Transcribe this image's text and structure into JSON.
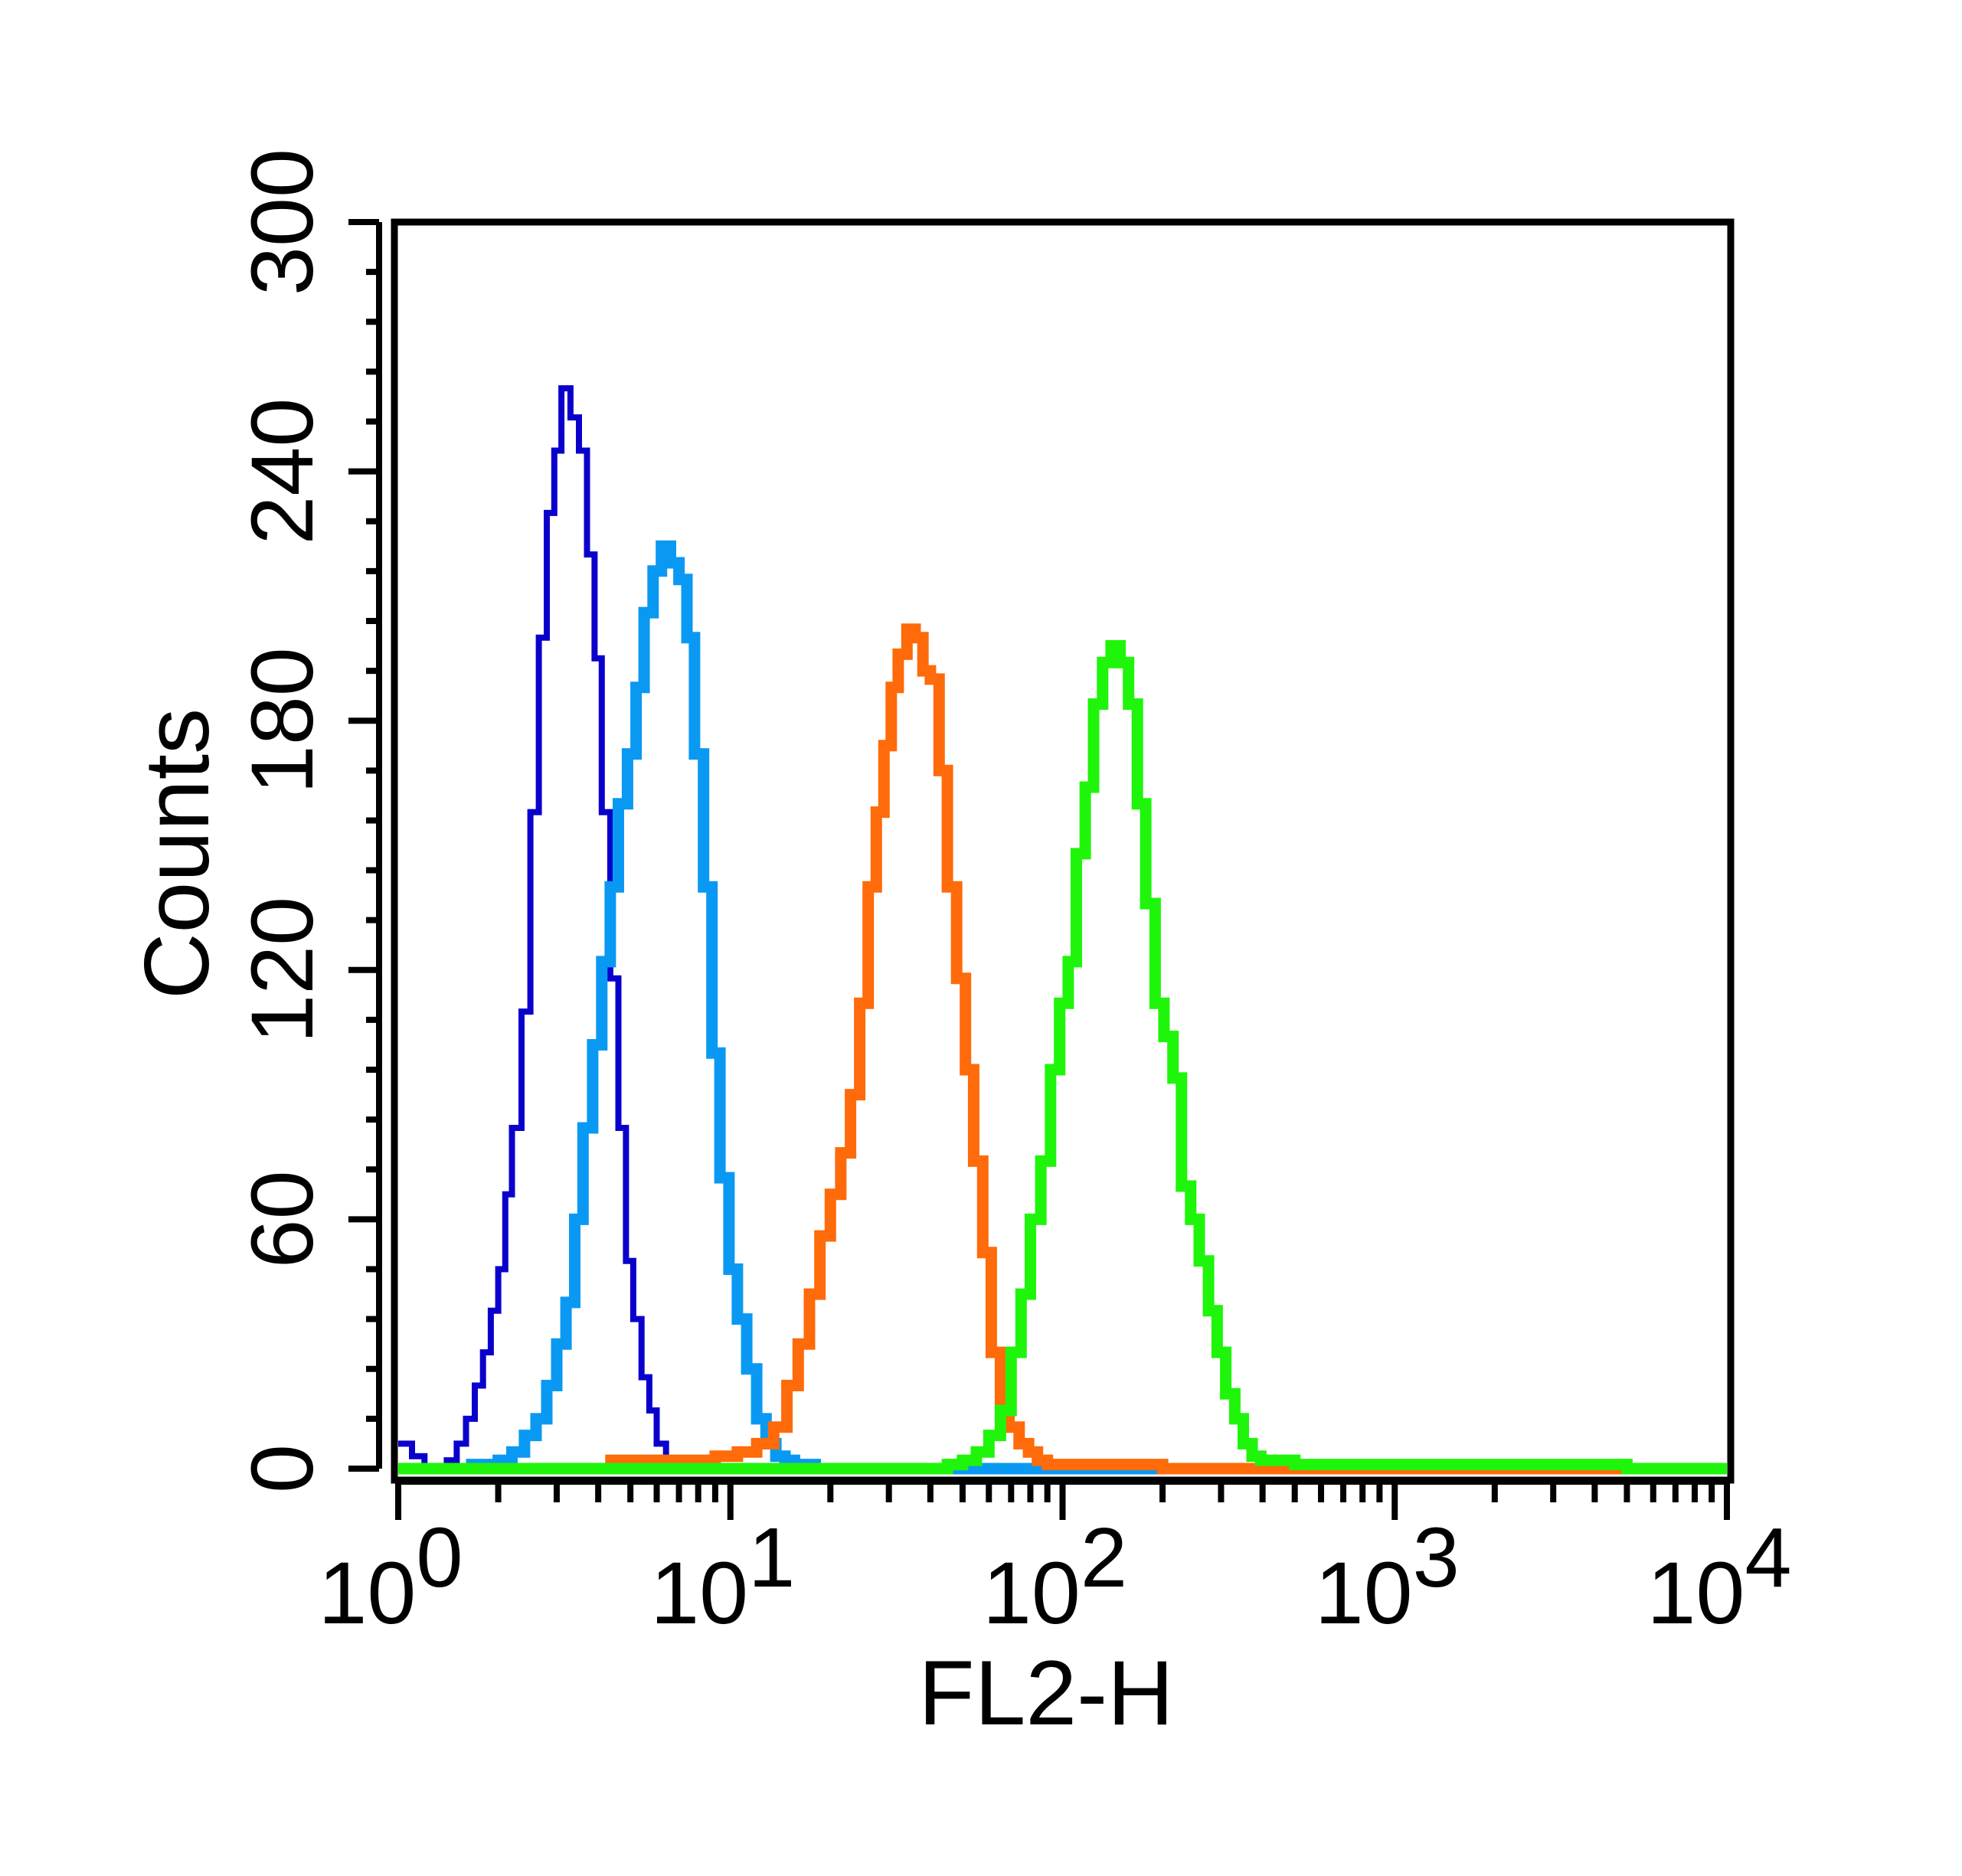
{
  "chart_data": {
    "type": "step-histogram",
    "title": "",
    "xlabel": "FL2-H",
    "ylabel": "Counts",
    "xscale": "log",
    "xlim": [
      1,
      10000
    ],
    "ylim": [
      0,
      300
    ],
    "xticks": [
      {
        "base": "10",
        "exp": "0"
      },
      {
        "base": "10",
        "exp": "1"
      },
      {
        "base": "10",
        "exp": "2"
      },
      {
        "base": "10",
        "exp": "3"
      },
      {
        "base": "10",
        "exp": "4"
      }
    ],
    "yticks": [
      "0",
      "60",
      "120",
      "180",
      "240",
      "300"
    ],
    "grid": false,
    "legend": "none",
    "series": [
      {
        "color": "#0A00CC",
        "x": [
          1.0,
          1.1,
          1.2,
          1.3,
          1.4,
          1.5,
          1.6,
          1.7,
          1.8,
          1.9,
          2.0,
          2.1,
          2.2,
          2.35,
          2.5,
          2.65,
          2.8,
          2.95,
          3.1,
          3.3,
          3.5,
          3.7,
          3.9,
          4.1,
          4.35,
          4.6,
          4.85,
          5.1,
          5.4,
          5.7,
          6.0,
          6.4,
          6.8,
          7.5,
          8.5,
          10.0,
          12.0,
          15.0
        ],
        "values": [
          6,
          3,
          0,
          0,
          2,
          6,
          12,
          20,
          28,
          38,
          48,
          66,
          82,
          110,
          158,
          200,
          230,
          245,
          260,
          253,
          245,
          220,
          195,
          158,
          118,
          82,
          50,
          36,
          22,
          14,
          6,
          2,
          0,
          0,
          0,
          0,
          0,
          0
        ]
      },
      {
        "color": "#0A99F2",
        "x": [
          1.6,
          1.8,
          2.0,
          2.2,
          2.4,
          2.6,
          2.8,
          3.0,
          3.2,
          3.4,
          3.6,
          3.85,
          4.1,
          4.35,
          4.6,
          4.9,
          5.2,
          5.5,
          5.85,
          6.2,
          6.6,
          7.0,
          7.4,
          7.8,
          8.3,
          8.8,
          9.3,
          9.9,
          10.5,
          11.2,
          12.0,
          12.8,
          13.7,
          14.6,
          15.6,
          16.7,
          18.0,
          20.0,
          30.0,
          50.0,
          80.0
        ],
        "values": [
          1,
          1,
          2,
          4,
          8,
          12,
          20,
          30,
          40,
          60,
          82,
          102,
          122,
          140,
          160,
          172,
          188,
          206,
          216,
          222,
          218,
          214,
          200,
          172,
          140,
          100,
          70,
          48,
          36,
          24,
          12,
          6,
          3,
          2,
          1,
          1,
          0,
          0,
          0,
          0,
          0
        ]
      },
      {
        "color": "#FF6A0A",
        "x": [
          4.2,
          6.0,
          7.5,
          9.0,
          10.5,
          12.0,
          13.5,
          14.8,
          16.0,
          17.3,
          18.6,
          20.0,
          21.5,
          23.0,
          24.5,
          26.0,
          27.5,
          29.0,
          30.5,
          32.0,
          34.0,
          36.0,
          38.0,
          40.0,
          42.5,
          45.0,
          48.0,
          51.0,
          54.0,
          57.5,
          61.0,
          65.0,
          69.0,
          74.0,
          79.0,
          84.0,
          90.0,
          100.0,
          120.0,
          150.0,
          200.0,
          300.0,
          470.0
        ],
        "values": [
          2,
          2,
          2,
          3,
          4,
          6,
          10,
          20,
          30,
          42,
          56,
          66,
          76,
          90,
          112,
          140,
          158,
          174,
          188,
          196,
          202,
          200,
          192,
          190,
          168,
          140,
          118,
          96,
          74,
          52,
          28,
          16,
          10,
          6,
          4,
          2,
          1,
          1,
          1,
          1,
          0,
          0,
          0
        ]
      },
      {
        "color": "#1EF50A",
        "x": [
          1.0,
          5.0,
          15.0,
          30.0,
          40.0,
          45.0,
          50.0,
          55.0,
          60.0,
          65.0,
          70.0,
          75.0,
          80.0,
          86.0,
          92.0,
          98.0,
          104.0,
          110.0,
          117.0,
          124.0,
          132.0,
          140.0,
          149.0,
          158.0,
          168.0,
          178.0,
          190.0,
          202.0,
          215.0,
          228.0,
          243.0,
          258.0,
          275.0,
          292.0,
          310.0,
          330.0,
          350.0,
          372.0,
          395.0,
          430.0,
          500.0,
          1000.0,
          2000.0,
          5000.0,
          10000.0
        ],
        "values": [
          0,
          0,
          0,
          0,
          0,
          1,
          2,
          4,
          8,
          14,
          28,
          42,
          60,
          74,
          96,
          112,
          122,
          148,
          164,
          184,
          194,
          198,
          194,
          184,
          160,
          136,
          112,
          104,
          94,
          68,
          60,
          50,
          38,
          28,
          18,
          12,
          6,
          3,
          2,
          2,
          1,
          1,
          1,
          0,
          0
        ]
      }
    ]
  }
}
